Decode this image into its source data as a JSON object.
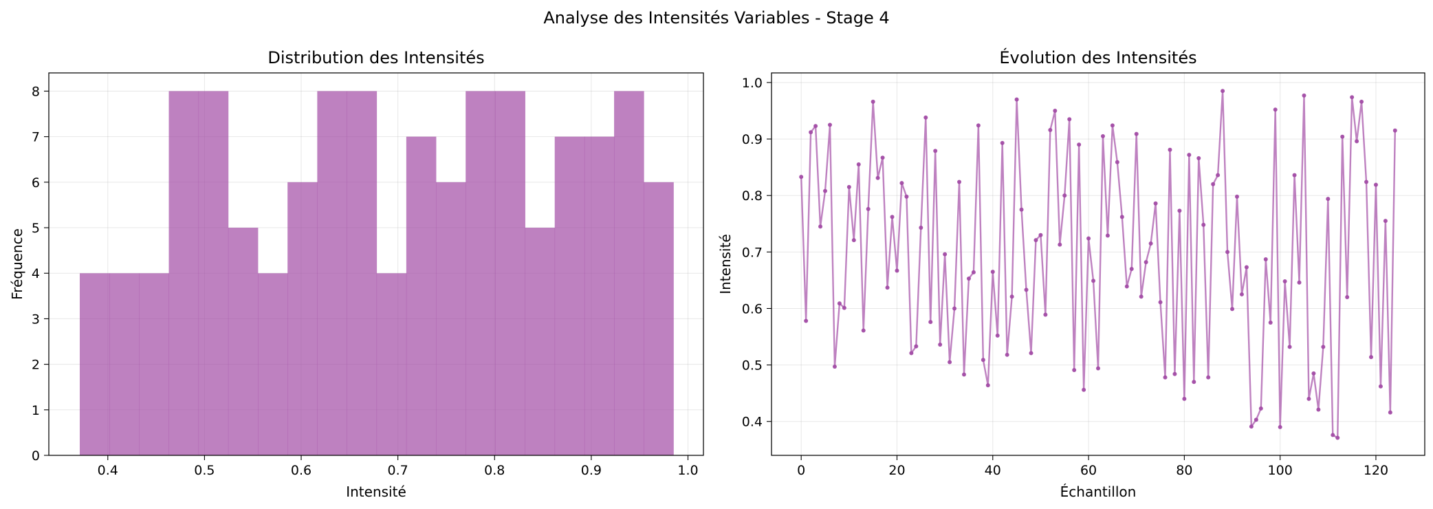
{
  "figure": {
    "suptitle": "Analyse des Intensités Variables - Stage 4",
    "color": "#a24ca5"
  },
  "chart_data": [
    {
      "type": "bar",
      "title": "Distribution des Intensités",
      "xlabel": "Intensité",
      "ylabel": "Fréquence",
      "xlim": [
        0.339,
        1.016
      ],
      "ylim": [
        0,
        8.4
      ],
      "xticks": [
        "0.4",
        "0.5",
        "0.6",
        "0.7",
        "0.8",
        "0.9",
        "1.0"
      ],
      "yticks": [
        "0",
        "1",
        "2",
        "3",
        "4",
        "5",
        "6",
        "7",
        "8"
      ],
      "grid": true,
      "color": "#a24ca5",
      "alpha": 0.7,
      "bin_edges": [
        0.371,
        0.4017,
        0.4324,
        0.4631,
        0.4938,
        0.5245,
        0.5552,
        0.5859,
        0.6166,
        0.6473,
        0.678,
        0.7087,
        0.7394,
        0.7701,
        0.8008,
        0.8315,
        0.8622,
        0.8929,
        0.9236,
        0.9543,
        0.985
      ],
      "values": [
        4,
        4,
        4,
        8,
        8,
        5,
        4,
        6,
        8,
        8,
        4,
        7,
        6,
        8,
        8,
        5,
        7,
        7,
        8,
        6
      ]
    },
    {
      "type": "line",
      "title": "Évolution des Intensités",
      "xlabel": "Échantillon",
      "ylabel": "Intensité",
      "xlim": [
        -6.2,
        130.2
      ],
      "ylim": [
        0.34,
        1.017
      ],
      "xticks": [
        "0",
        "20",
        "40",
        "60",
        "80",
        "100",
        "120"
      ],
      "yticks": [
        "0.4",
        "0.5",
        "0.6",
        "0.7",
        "0.8",
        "0.9",
        "1.0"
      ],
      "grid": true,
      "color": "#a24ca5",
      "alpha": 0.7,
      "marker": "o",
      "x": [
        0,
        1,
        2,
        3,
        4,
        5,
        6,
        7,
        8,
        9,
        10,
        11,
        12,
        13,
        14,
        15,
        16,
        17,
        18,
        19,
        20,
        21,
        22,
        23,
        24,
        25,
        26,
        27,
        28,
        29,
        30,
        31,
        32,
        33,
        34,
        35,
        36,
        37,
        38,
        39,
        40,
        41,
        42,
        43,
        44,
        45,
        46,
        47,
        48,
        49,
        50,
        51,
        52,
        53,
        54,
        55,
        56,
        57,
        58,
        59,
        60,
        61,
        62,
        63,
        64,
        65,
        66,
        67,
        68,
        69,
        70,
        71,
        72,
        73,
        74,
        75,
        76,
        77,
        78,
        79,
        80,
        81,
        82,
        83,
        84,
        85,
        86,
        87,
        88,
        89,
        90,
        91,
        92,
        93,
        94,
        95,
        96,
        97,
        98,
        99,
        100,
        101,
        102,
        103,
        104,
        105,
        106,
        107,
        108,
        109,
        110,
        111,
        112,
        113,
        114,
        115,
        116,
        117,
        118,
        119,
        120,
        121,
        122,
        123,
        124
      ],
      "y": [
        0.833,
        0.578,
        0.912,
        0.923,
        0.745,
        0.808,
        0.925,
        0.497,
        0.609,
        0.601,
        0.815,
        0.721,
        0.855,
        0.561,
        0.776,
        0.966,
        0.831,
        0.867,
        0.637,
        0.762,
        0.667,
        0.822,
        0.798,
        0.521,
        0.533,
        0.743,
        0.938,
        0.576,
        0.879,
        0.536,
        0.696,
        0.505,
        0.6,
        0.824,
        0.483,
        0.653,
        0.664,
        0.924,
        0.509,
        0.464,
        0.665,
        0.552,
        0.893,
        0.518,
        0.621,
        0.97,
        0.775,
        0.633,
        0.521,
        0.721,
        0.73,
        0.589,
        0.916,
        0.95,
        0.713,
        0.8,
        0.935,
        0.491,
        0.89,
        0.456,
        0.724,
        0.649,
        0.494,
        0.905,
        0.729,
        0.924,
        0.859,
        0.762,
        0.639,
        0.67,
        0.909,
        0.621,
        0.682,
        0.715,
        0.786,
        0.611,
        0.478,
        0.881,
        0.484,
        0.773,
        0.44,
        0.872,
        0.47,
        0.866,
        0.748,
        0.478,
        0.82,
        0.836,
        0.985,
        0.7,
        0.599,
        0.798,
        0.625,
        0.673,
        0.391,
        0.403,
        0.423,
        0.687,
        0.575,
        0.952,
        0.39,
        0.648,
        0.532,
        0.836,
        0.646,
        0.977,
        0.44,
        0.485,
        0.421,
        0.532,
        0.794,
        0.376,
        0.371,
        0.904,
        0.62,
        0.974,
        0.896,
        0.966,
        0.824,
        0.514,
        0.819,
        0.462,
        0.755,
        0.416,
        0.915
      ]
    }
  ]
}
